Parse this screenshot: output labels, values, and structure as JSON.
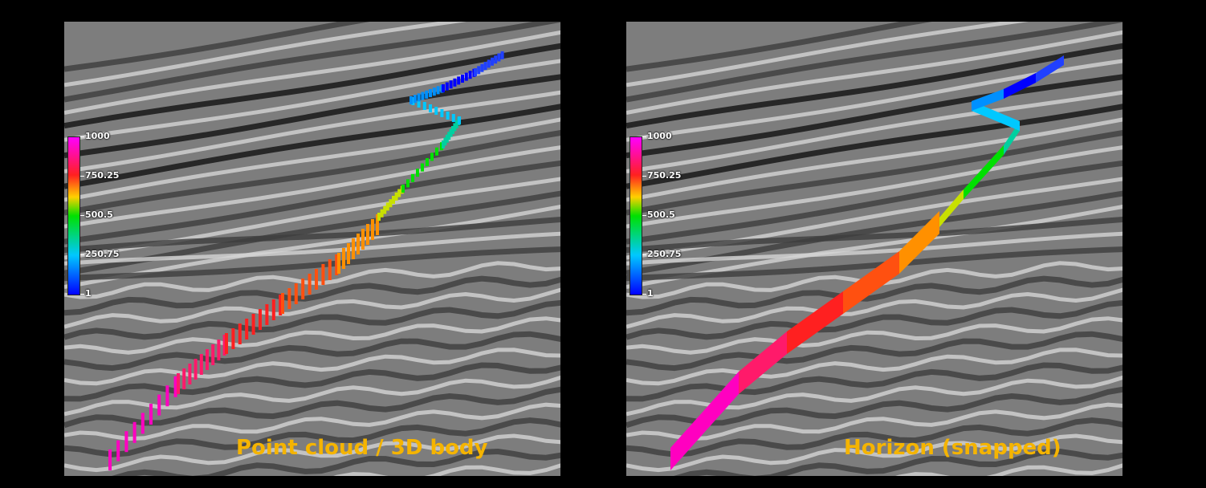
{
  "panels": [
    {
      "caption": "Point cloud / 3D body"
    },
    {
      "caption": "Horizon (snapped)"
    }
  ],
  "colorbar": {
    "ticks": [
      "1000",
      "750.25",
      "500.5",
      "250.75",
      "1"
    ],
    "min": 1,
    "max": 1000,
    "colors": [
      "#0000ff",
      "#00c8ff",
      "#00e000",
      "#ffd000",
      "#ff2020",
      "#ff00ff"
    ]
  },
  "caption_color": "#f5b400"
}
